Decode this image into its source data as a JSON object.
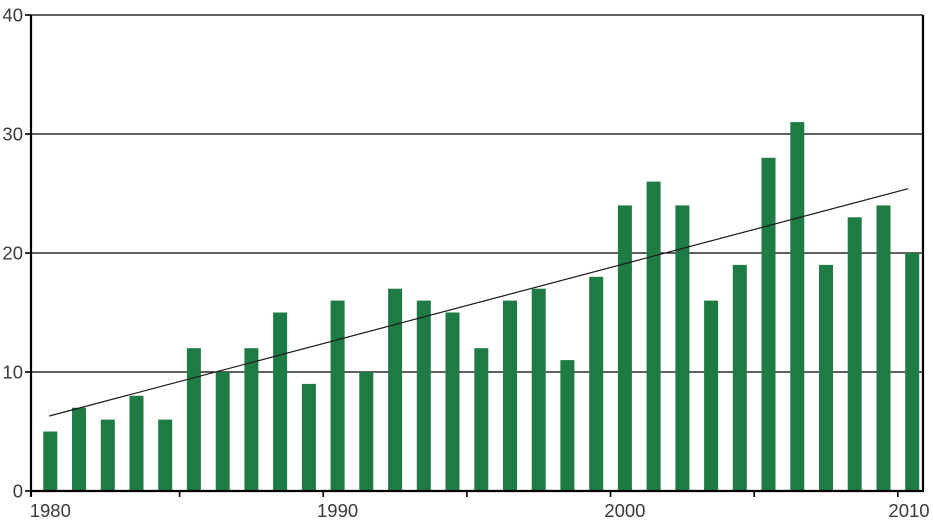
{
  "chart_data": {
    "type": "bar",
    "title": "",
    "xlabel": "",
    "ylabel": "",
    "x": [
      1980,
      1981,
      1982,
      1983,
      1984,
      1985,
      1986,
      1987,
      1988,
      1989,
      1990,
      1991,
      1992,
      1993,
      1994,
      1995,
      1996,
      1997,
      1998,
      1999,
      2000,
      2001,
      2002,
      2003,
      2004,
      2005,
      2006,
      2007,
      2008,
      2009,
      2010
    ],
    "values": [
      5,
      7,
      6,
      8,
      6,
      12,
      10,
      12,
      15,
      9,
      16,
      10,
      17,
      16,
      15,
      12,
      16,
      17,
      11,
      18,
      24,
      26,
      24,
      16,
      19,
      28,
      31,
      19,
      23,
      24,
      20
    ],
    "ylim": [
      0,
      40
    ],
    "yticks": [
      0,
      10,
      20,
      30,
      40
    ],
    "ytick_labels": [
      "0",
      "10",
      "20",
      "30",
      "40"
    ],
    "xtick_label_years": [
      1980,
      1990,
      2000,
      2010
    ],
    "xtick_labels": [
      "1980",
      "1990",
      "2000",
      "2010"
    ],
    "minor_xtick_boundary_years": [
      1984.5,
      1989.5,
      1994.5,
      1999.5,
      2004.5,
      2009.5
    ],
    "trend_line": {
      "start_value": 6.3,
      "end_value": 25.4
    },
    "grid": "horizontal",
    "legend": "none",
    "colors": {
      "bar": "#1f7b44",
      "grid": "#000000",
      "axis": "#000000",
      "trend": "#1a1a1a",
      "label": "#3a3a3a",
      "background": "#ffffff"
    }
  }
}
